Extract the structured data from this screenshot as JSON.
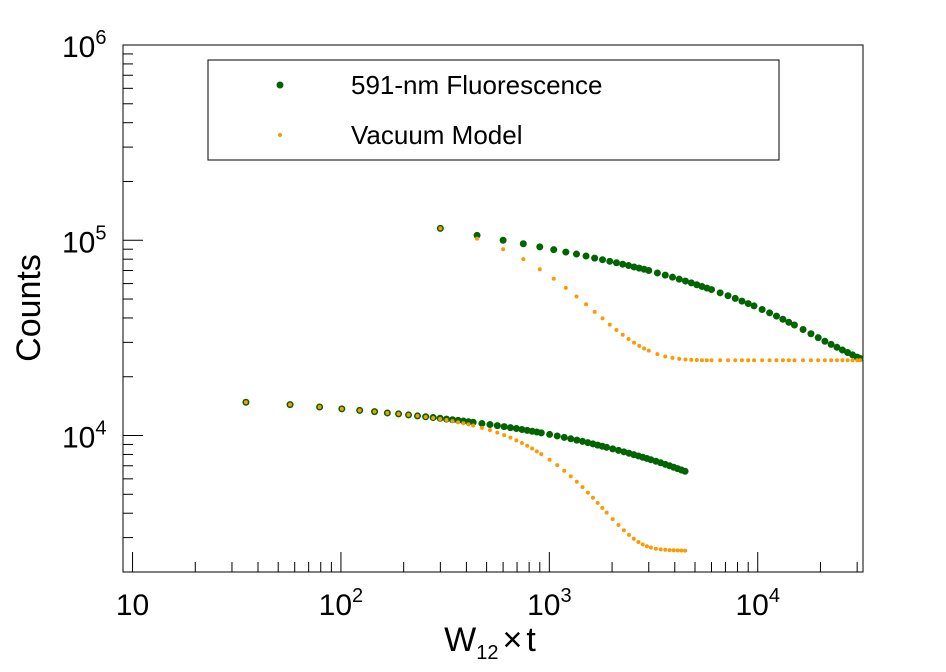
{
  "chart_data": {
    "type": "scatter",
    "xscale": "log",
    "yscale": "log",
    "xlim": [
      9,
      32000
    ],
    "ylim": [
      2000,
      1000000
    ],
    "xlabel": "W_12 × t",
    "xlabel_main": "W",
    "xlabel_sub": "12",
    "xlabel_op": "×",
    "xlabel_var": "t",
    "ylabel": "Counts",
    "x_ticks": [
      {
        "value": 10,
        "base": "10",
        "exp": ""
      },
      {
        "value": 100,
        "base": "10",
        "exp": "2"
      },
      {
        "value": 1000,
        "base": "10",
        "exp": "3"
      },
      {
        "value": 10000,
        "base": "10",
        "exp": "4"
      }
    ],
    "y_ticks": [
      {
        "value": 10000,
        "base": "10",
        "exp": "4"
      },
      {
        "value": 100000,
        "base": "10",
        "exp": "5"
      },
      {
        "value": 1000000,
        "base": "10",
        "exp": "6"
      }
    ],
    "legend": {
      "position": "top-center",
      "entries": [
        {
          "label": "591-nm Fluorescence",
          "color": "#006400"
        },
        {
          "label": "Vacuum Model",
          "color": "#ff9900"
        }
      ]
    },
    "series": [
      {
        "name": "591-nm Fluorescence (upper)",
        "color": "#006400",
        "marker_size": 7,
        "x": [
          300,
          450,
          600,
          750,
          900,
          1050,
          1200,
          1350,
          1500,
          1650,
          1800,
          1950,
          2100,
          2250,
          2400,
          2550,
          2700,
          2850,
          3000,
          3300,
          3600,
          3900,
          4200,
          4500,
          4800,
          5100,
          5400,
          5700,
          6000,
          6600,
          7200,
          7800,
          8400,
          9000,
          9600,
          10500,
          11400,
          12300,
          13200,
          14100,
          15000,
          16500,
          18000,
          19500,
          21000,
          22500,
          24000,
          25500,
          27000,
          28500,
          30000,
          31000
        ],
        "y": [
          115000,
          106000,
          100000,
          96000,
          92500,
          89500,
          87000,
          85000,
          83000,
          81000,
          79500,
          78000,
          76700,
          75400,
          74200,
          73000,
          72000,
          71000,
          70000,
          68000,
          66300,
          64700,
          63200,
          61800,
          60500,
          59200,
          58000,
          56900,
          55900,
          53800,
          52000,
          50400,
          48800,
          47400,
          46100,
          44200,
          42500,
          40900,
          39400,
          38000,
          36800,
          34900,
          33200,
          31700,
          30400,
          29300,
          28300,
          27400,
          26600,
          25900,
          25200,
          24800
        ]
      },
      {
        "name": "Vacuum Model (upper)",
        "color": "#ff9900",
        "marker_size": 4,
        "x": [
          300,
          450,
          600,
          750,
          900,
          1050,
          1200,
          1350,
          1500,
          1650,
          1800,
          1950,
          2100,
          2250,
          2400,
          2550,
          2700,
          2850,
          3000,
          3300,
          3600,
          3900,
          4200,
          4500,
          4800,
          5100,
          5400,
          5700,
          6000,
          6600,
          7200,
          7800,
          8400,
          9000,
          9600,
          10500,
          11400,
          12300,
          13200,
          14100,
          15000,
          16500,
          18000,
          19500,
          21000,
          22500,
          24000,
          25500,
          27000,
          28500,
          30000,
          31000
        ],
        "y": [
          115000,
          102000,
          90000,
          80000,
          71000,
          63500,
          57000,
          51500,
          47000,
          43000,
          39800,
          37000,
          34700,
          32800,
          31200,
          29900,
          28800,
          27900,
          27200,
          26100,
          25400,
          25000,
          24700,
          24500,
          24400,
          24350,
          24300,
          24300,
          24300,
          24300,
          24300,
          24300,
          24300,
          24300,
          24300,
          24300,
          24300,
          24300,
          24300,
          24300,
          24300,
          24300,
          24300,
          24300,
          24300,
          24300,
          24300,
          24300,
          24300,
          24300,
          24300,
          24300
        ]
      },
      {
        "name": "591-nm Fluorescence (lower)",
        "color": "#006400",
        "marker_size": 7,
        "x": [
          35,
          57,
          79,
          101,
          123,
          145,
          167,
          189,
          211,
          233,
          255,
          277,
          299,
          321,
          343,
          365,
          387,
          409,
          431,
          475,
          519,
          563,
          607,
          651,
          695,
          739,
          783,
          827,
          871,
          915,
          1003,
          1091,
          1179,
          1267,
          1355,
          1443,
          1531,
          1619,
          1707,
          1795,
          1883,
          2015,
          2147,
          2279,
          2411,
          2543,
          2675,
          2807,
          2939,
          3071,
          3247,
          3423,
          3599,
          3775,
          3951,
          4127,
          4303,
          4479
        ],
        "y": [
          14800,
          14400,
          14000,
          13700,
          13450,
          13250,
          13050,
          12900,
          12750,
          12600,
          12480,
          12360,
          12250,
          12140,
          12040,
          11950,
          11860,
          11770,
          11690,
          11530,
          11380,
          11240,
          11110,
          10980,
          10860,
          10740,
          10630,
          10520,
          10420,
          10320,
          10130,
          9950,
          9780,
          9620,
          9470,
          9330,
          9190,
          9060,
          8930,
          8810,
          8700,
          8540,
          8390,
          8250,
          8110,
          7980,
          7860,
          7740,
          7630,
          7520,
          7380,
          7250,
          7120,
          7000,
          6880,
          6770,
          6660,
          6560
        ]
      },
      {
        "name": "Vacuum Model (lower)",
        "color": "#ff9900",
        "marker_size": 4,
        "x": [
          35,
          57,
          79,
          101,
          123,
          145,
          167,
          189,
          211,
          233,
          255,
          277,
          299,
          321,
          343,
          365,
          387,
          409,
          431,
          475,
          519,
          563,
          607,
          651,
          695,
          739,
          783,
          827,
          871,
          915,
          1003,
          1091,
          1179,
          1267,
          1355,
          1443,
          1531,
          1619,
          1707,
          1795,
          1883,
          2015,
          2147,
          2279,
          2411,
          2543,
          2675,
          2807,
          2939,
          3071,
          3247,
          3423,
          3599,
          3775,
          3951,
          4127,
          4303,
          4479
        ],
        "y": [
          14800,
          14400,
          14000,
          13700,
          13450,
          13250,
          13050,
          12900,
          12750,
          12600,
          12450,
          12300,
          12150,
          12000,
          11850,
          11700,
          11550,
          11400,
          11250,
          10950,
          10650,
          10350,
          10050,
          9750,
          9450,
          9150,
          8860,
          8580,
          8300,
          8030,
          7520,
          7050,
          6600,
          6180,
          5800,
          5440,
          5100,
          4800,
          4520,
          4260,
          4030,
          3730,
          3480,
          3270,
          3100,
          2960,
          2850,
          2770,
          2710,
          2670,
          2630,
          2610,
          2600,
          2590,
          2585,
          2580,
          2578,
          2575
        ]
      }
    ]
  }
}
